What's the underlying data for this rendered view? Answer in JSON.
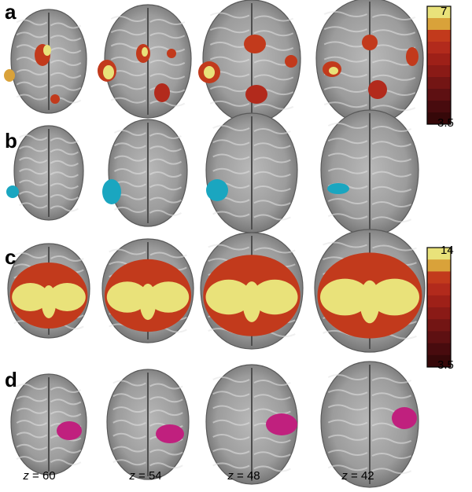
{
  "panels": [
    {
      "label": "a",
      "overlay": "heat",
      "colorbar": {
        "max": "7",
        "min": "3.5"
      }
    },
    {
      "label": "b",
      "overlay": "cyan"
    },
    {
      "label": "c",
      "overlay": "heat-extensive",
      "colorbar": {
        "max": "14",
        "min": "3.5"
      }
    },
    {
      "label": "d",
      "overlay": "magenta"
    }
  ],
  "slices": [
    {
      "var": "z",
      "eq": " = ",
      "value": "60"
    },
    {
      "var": "z",
      "eq": " = ",
      "value": "54"
    },
    {
      "var": "z",
      "eq": " = ",
      "value": "48"
    },
    {
      "var": "z",
      "eq": " = ",
      "value": "42"
    }
  ],
  "colors": {
    "heat_scale": [
      "#e9e27a",
      "#d9a23a",
      "#c23a1c",
      "#b22a1c",
      "#9e2018",
      "#8a1a16",
      "#731514",
      "#5e1012",
      "#480b0e",
      "#360809"
    ],
    "cyan": "#1aa6c0",
    "magenta": "#c0207e"
  }
}
